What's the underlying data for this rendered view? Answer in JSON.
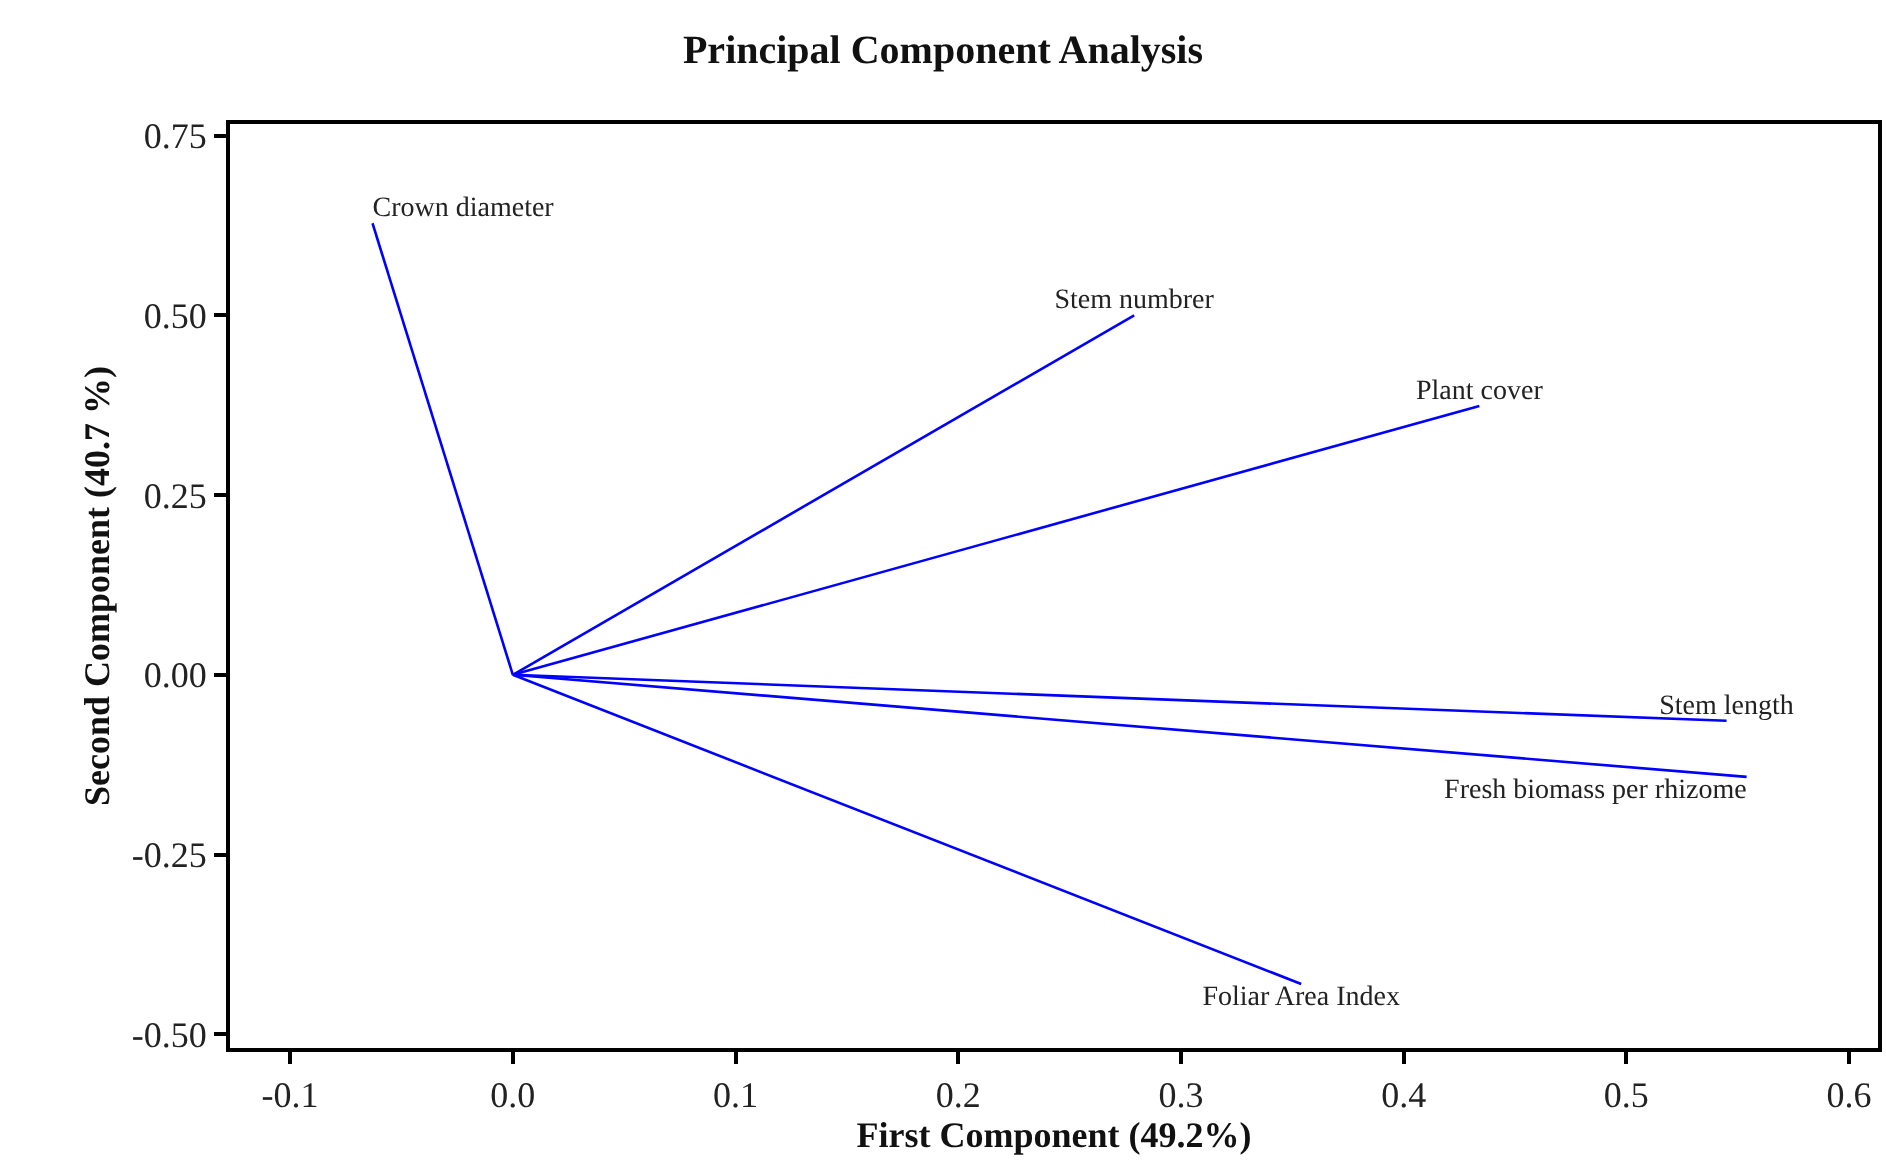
{
  "chart_data": {
    "type": "line",
    "title": "Principal Component Analysis",
    "xlabel": "First Component (49.2%)",
    "ylabel": "Second Component (40.7 %)",
    "xlim": [
      -0.127,
      0.613
    ],
    "ylim": [
      -0.519,
      0.766
    ],
    "xticks": [
      -0.1,
      {
        "value": 0,
        "label": "0.0"
      },
      0.1,
      0.2,
      0.3,
      0.4,
      0.5,
      0.6
    ],
    "yticks": [
      {
        "value": -0.5,
        "label": "-0.50"
      },
      -0.25,
      {
        "value": 0,
        "label": "0.00"
      },
      0.25,
      {
        "value": 0.5,
        "label": "0.50"
      },
      0.75
    ],
    "legend": false,
    "marker": "none",
    "line_style": "solid",
    "series": [
      {
        "name": "Crown diameter",
        "color": "#0000ff",
        "x": [
          0,
          -0.063
        ],
        "values": [
          0,
          0.628
        ]
      },
      {
        "name": "Stem numbrer",
        "color": "#0000ff",
        "x": [
          0,
          0.279
        ],
        "values": [
          0,
          0.5
        ]
      },
      {
        "name": "Plant cover",
        "color": "#0000ff",
        "x": [
          0,
          0.434
        ],
        "values": [
          0,
          0.374
        ]
      },
      {
        "name": "Stem length",
        "color": "#0000ff",
        "x": [
          0,
          0.545
        ],
        "values": [
          0,
          -0.064
        ]
      },
      {
        "name": "Fresh biomass per rhizome",
        "color": "#0000ff",
        "x": [
          0,
          0.554
        ],
        "values": [
          0,
          -0.142
        ]
      },
      {
        "name": "Foliar Area Index",
        "color": "#0000ff",
        "x": [
          0,
          0.354
        ],
        "values": [
          0,
          -0.43
        ]
      }
    ]
  }
}
